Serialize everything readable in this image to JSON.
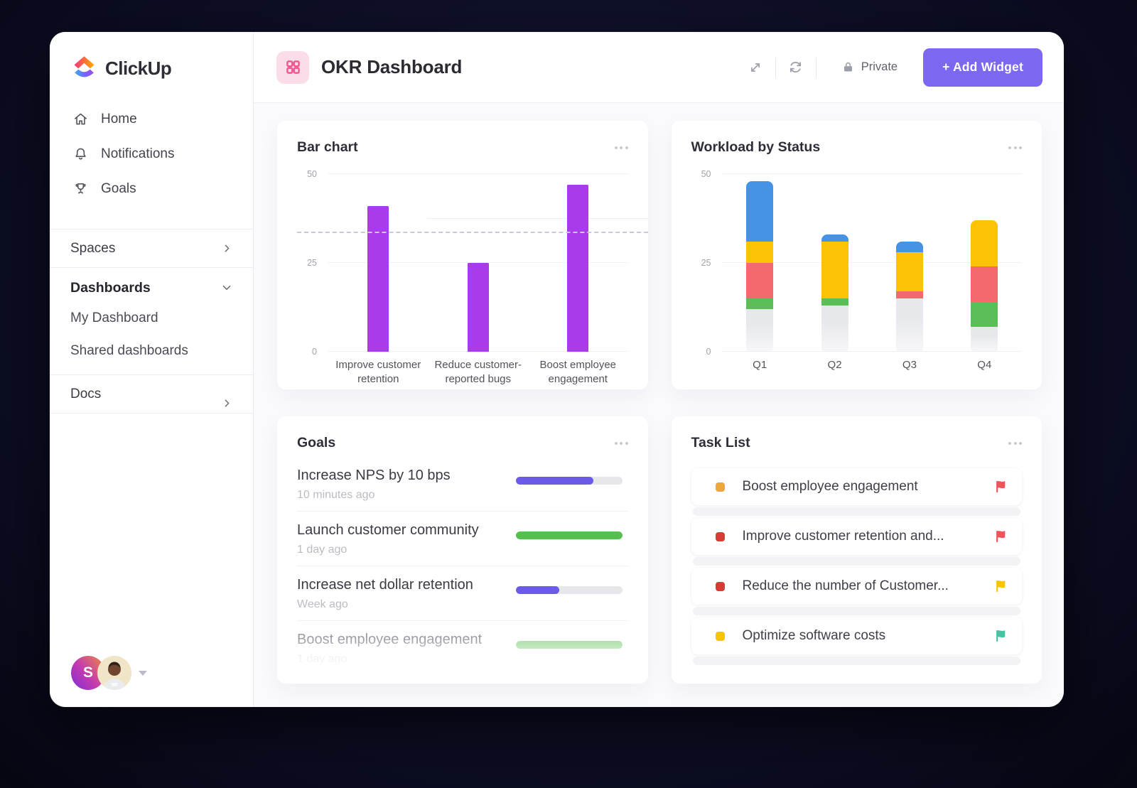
{
  "app": {
    "brand": "ClickUp"
  },
  "colors": {
    "accent": "#7B68EE",
    "chip_bg": "#FBDDE9",
    "chip_glyph": "#EE5A92"
  },
  "sidebar": {
    "nav": [
      {
        "icon": "home-icon",
        "label": "Home"
      },
      {
        "icon": "bell-icon",
        "label": "Notifications"
      },
      {
        "icon": "trophy-icon",
        "label": "Goals"
      }
    ],
    "spaces_label": "Spaces",
    "dashboards_label": "Dashboards",
    "dashboard_items": [
      {
        "label": "My Dashboard"
      },
      {
        "label": "Shared dashboards"
      }
    ],
    "docs_label": "Docs",
    "avatar_initial": "S"
  },
  "header": {
    "title": "OKR Dashboard",
    "privacy_label": "Private",
    "add_widget_label": "+ Add Widget"
  },
  "goals": {
    "title": "Goals",
    "items": [
      {
        "title": "Increase NPS by 10 bps",
        "time": "10 minutes ago",
        "progress_pct": 73,
        "color": "#6b5ae8"
      },
      {
        "title": "Launch customer community",
        "time": "1 day ago",
        "progress_pct": 100,
        "color": "#55c04e"
      },
      {
        "title": "Increase net dollar retention",
        "time": "Week ago",
        "progress_pct": 41,
        "color": "#6b5ae8"
      },
      {
        "title": "Boost employee engagement",
        "time": "1 day ago",
        "progress_pct": 100,
        "color": "#a8dda2",
        "faded": true
      }
    ]
  },
  "tasks": {
    "title": "Task List",
    "items": [
      {
        "title": "Boost employee engagement",
        "square_color": "#efa63b",
        "flag_color": "#f1535c"
      },
      {
        "title": "Improve customer retention and...",
        "square_color": "#d63c35",
        "flag_color": "#f1535c"
      },
      {
        "title": "Reduce the number of Customer...",
        "square_color": "#d63c35",
        "flag_color": "#f7c400"
      },
      {
        "title": "Optimize software costs",
        "square_color": "#f6c500",
        "flag_color": "#46c3a4"
      }
    ]
  },
  "chart_data": [
    {
      "type": "bar",
      "title": "Bar chart",
      "categories": [
        "Improve customer retention",
        "Reduce customer-reported bugs",
        "Boost employee engagement"
      ],
      "values": [
        41,
        25,
        47
      ],
      "bar_color": "#a93beb",
      "ylim": [
        0,
        50
      ],
      "yticks": [
        0,
        25,
        50
      ],
      "threshold_dashed": 33.5,
      "partial_gridline": 37.5,
      "grid": "horizontal",
      "legend": "none"
    },
    {
      "type": "bar",
      "stacked": true,
      "title": "Workload by Status",
      "categories": [
        "Q1",
        "Q2",
        "Q3",
        "Q4"
      ],
      "series": [
        {
          "name": "gray",
          "color": "#e7e8ec",
          "fade_bottom": true,
          "values": [
            12,
            13,
            15,
            7
          ]
        },
        {
          "name": "green",
          "color": "#5cbe57",
          "values": [
            3,
            2,
            0,
            7
          ]
        },
        {
          "name": "red",
          "color": "#f4696e",
          "values": [
            10,
            0,
            2,
            10
          ]
        },
        {
          "name": "yellow",
          "color": "#fbc303",
          "values": [
            6,
            16,
            11,
            13
          ]
        },
        {
          "name": "blue",
          "color": "#4493e4",
          "values": [
            17,
            2,
            3,
            0
          ]
        }
      ],
      "ylim": [
        0,
        50
      ],
      "yticks": [
        0,
        25,
        50
      ],
      "grid": "horizontal",
      "legend": "none"
    }
  ]
}
